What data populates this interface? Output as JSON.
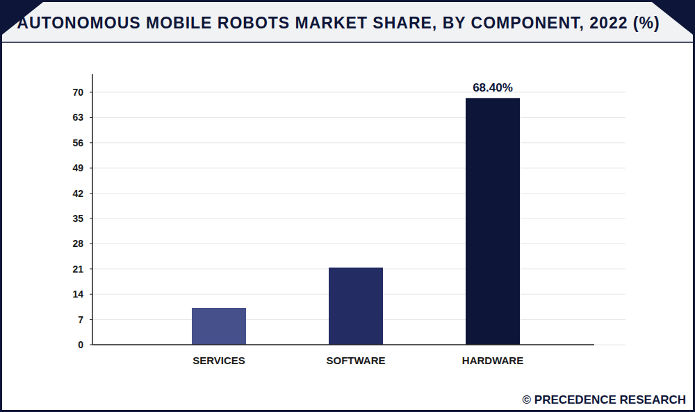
{
  "chart_data": {
    "type": "bar",
    "title": "AUTONOMOUS MOBILE ROBOTS MARKET SHARE, BY COMPONENT, 2022 (%)",
    "categories": [
      "SERVICES",
      "SOFTWARE",
      "HARDWARE"
    ],
    "values": [
      10.2,
      21.4,
      68.4
    ],
    "value_labels": [
      null,
      null,
      "68.40%"
    ],
    "data_labels": true,
    "colors": [
      "#46508a",
      "#232c63",
      "#0d1538"
    ],
    "ylim": [
      0,
      75
    ],
    "yticks": [
      0,
      7,
      14,
      21,
      28,
      35,
      42,
      49,
      56,
      63,
      70
    ],
    "grid": true,
    "source": "© PRECEDENCE RESEARCH"
  }
}
